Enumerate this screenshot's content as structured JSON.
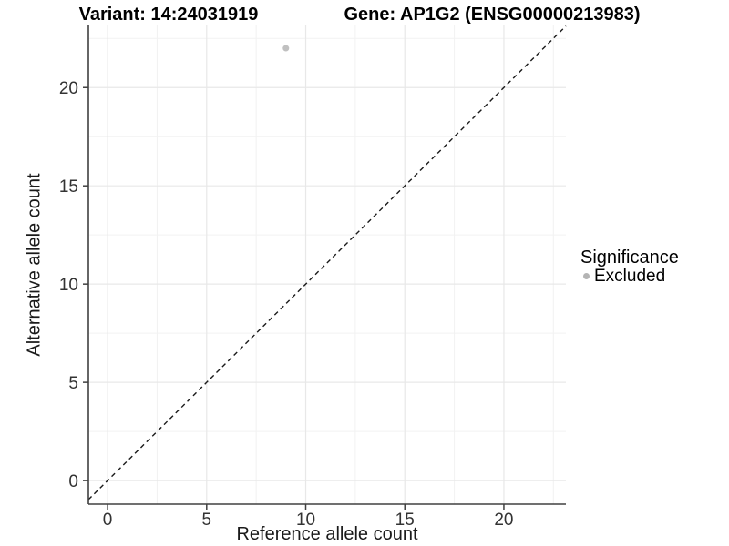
{
  "chart_data": {
    "type": "scatter",
    "variant_title": "Variant: 14:24031919",
    "gene_title": "Gene: AP1G2 (ENSG00000213983)",
    "xlabel": "Reference allele count",
    "ylabel": "Alternative allele count",
    "xlim": [
      -0.97,
      23.13
    ],
    "ylim": [
      -1.2,
      23.16
    ],
    "x_ticks": [
      0,
      5,
      10,
      15,
      20
    ],
    "y_ticks": [
      0,
      5,
      10,
      15,
      20
    ],
    "x_minor_ticks": [
      2.5,
      7.5,
      12.5,
      17.5,
      22.5
    ],
    "y_minor_ticks": [
      2.5,
      7.5,
      12.5,
      17.5,
      22.5
    ],
    "grid": true,
    "reference_line": {
      "type": "identity",
      "style": "dashed",
      "slope": 1,
      "intercept": 0
    },
    "series": [
      {
        "name": "Excluded",
        "points": [
          {
            "x": 9,
            "y": 22
          }
        ]
      }
    ],
    "legend": {
      "position": "right",
      "title": "Significance",
      "items": [
        {
          "label": "Excluded",
          "marker": "circle",
          "color": "#b4b4b4"
        }
      ]
    }
  },
  "colors": {
    "point": "#bdbdbd",
    "legend_marker": "#b4b4b4",
    "grid_major": "#e8e8e8",
    "grid_minor": "#f2f2f2",
    "axis_line": "#404040",
    "tick_text": "#333333",
    "dashed_line": "#1a1a1a",
    "background": "#ffffff"
  }
}
